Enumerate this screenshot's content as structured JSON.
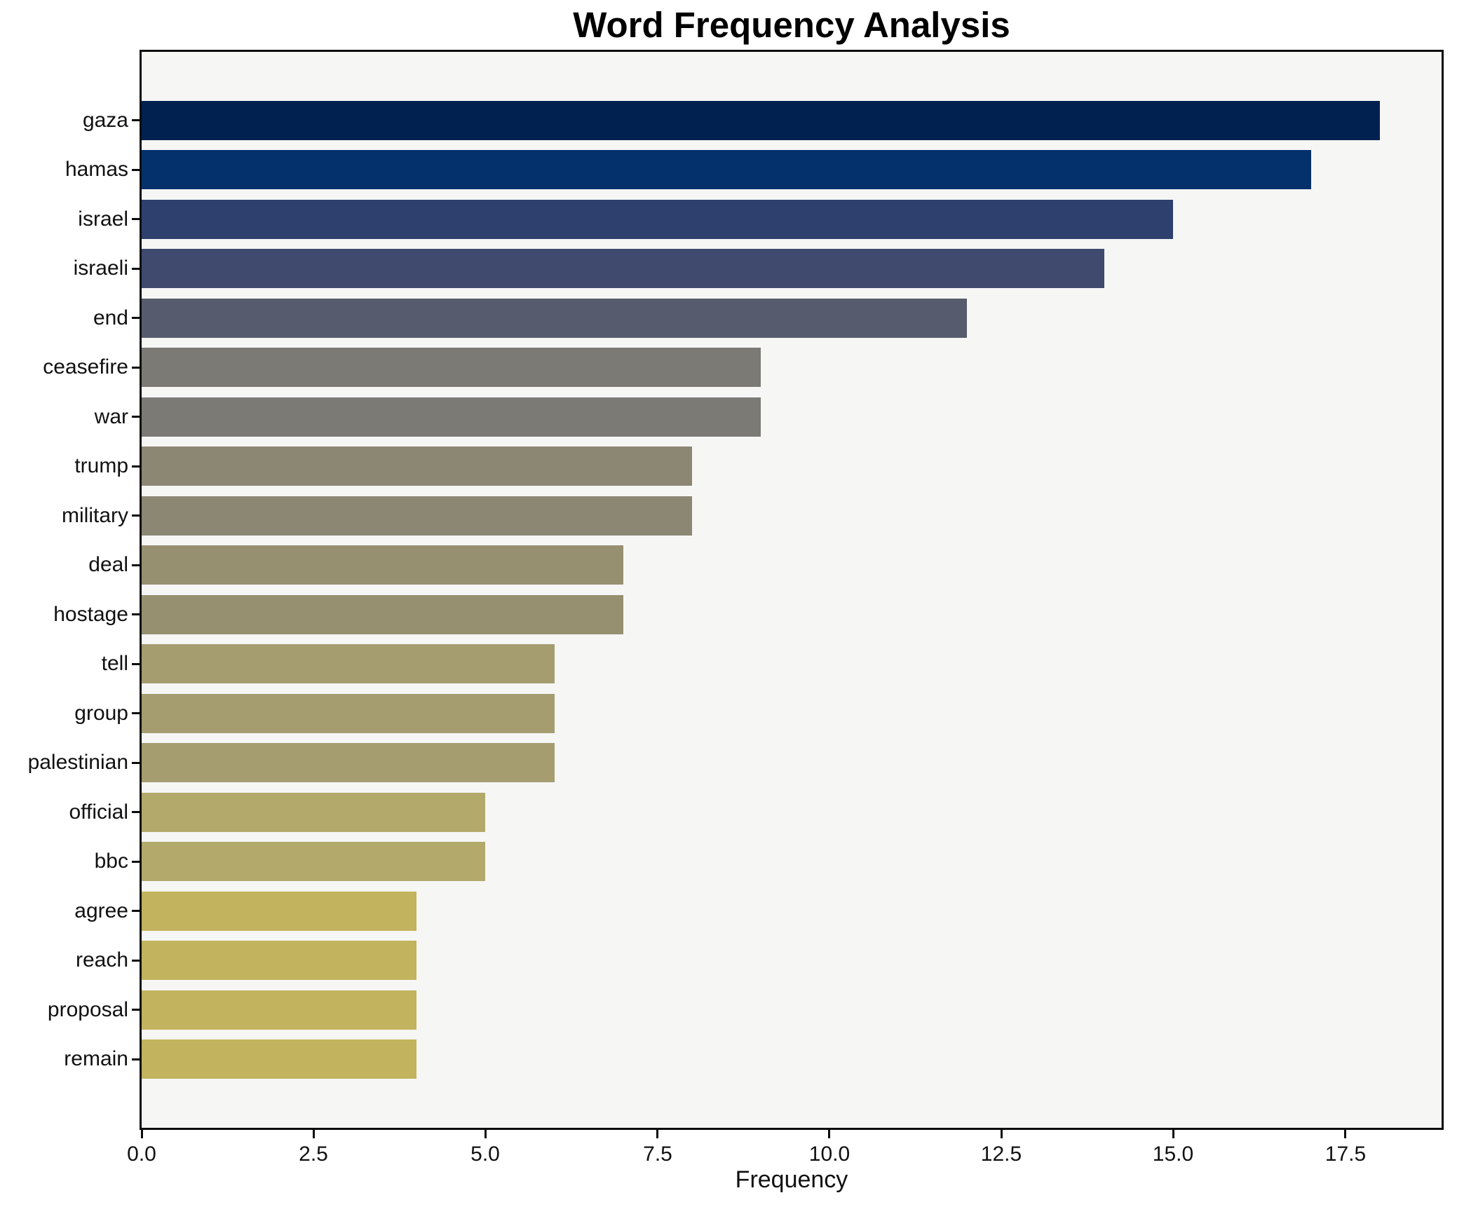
{
  "title": "Word Frequency Analysis",
  "chart_data": {
    "type": "bar",
    "orientation": "horizontal",
    "title": "Word Frequency Analysis",
    "xlabel": "Frequency",
    "ylabel": "",
    "grid": false,
    "legend": null,
    "plot_background": "#f6f6f5",
    "figure_background": "#ffffff",
    "xlim": [
      0,
      18.9
    ],
    "x_tick_values": [
      0,
      2.5,
      5,
      7.5,
      10,
      12.5,
      15,
      17.5
    ],
    "x_tick_labels": [
      "0.0",
      "2.5",
      "5.0",
      "7.5",
      "10.0",
      "12.5",
      "15.0",
      "17.5"
    ],
    "categories": [
      "gaza",
      "hamas",
      "israel",
      "israeli",
      "end",
      "ceasefire",
      "war",
      "trump",
      "military",
      "deal",
      "hostage",
      "tell",
      "group",
      "palestinian",
      "official",
      "bbc",
      "agree",
      "reach",
      "proposal",
      "remain"
    ],
    "values": [
      18,
      17,
      15,
      14,
      12,
      9,
      9,
      8,
      8,
      7,
      7,
      6,
      6,
      6,
      5,
      5,
      4,
      4,
      4,
      4
    ],
    "bar_colors": [
      "#012150",
      "#04316b",
      "#2e406d",
      "#3f4a6e",
      "#565c6d",
      "#7b7a74",
      "#7b7a74",
      "#8b8773",
      "#8b8773",
      "#969070",
      "#969070",
      "#a59d70",
      "#a59d70",
      "#a59d70",
      "#b2a96a",
      "#b2a96a",
      "#c2b35e",
      "#c2b35e",
      "#c2b35e",
      "#c2b35e"
    ],
    "colormap": "cividis-reversed-by-value"
  }
}
